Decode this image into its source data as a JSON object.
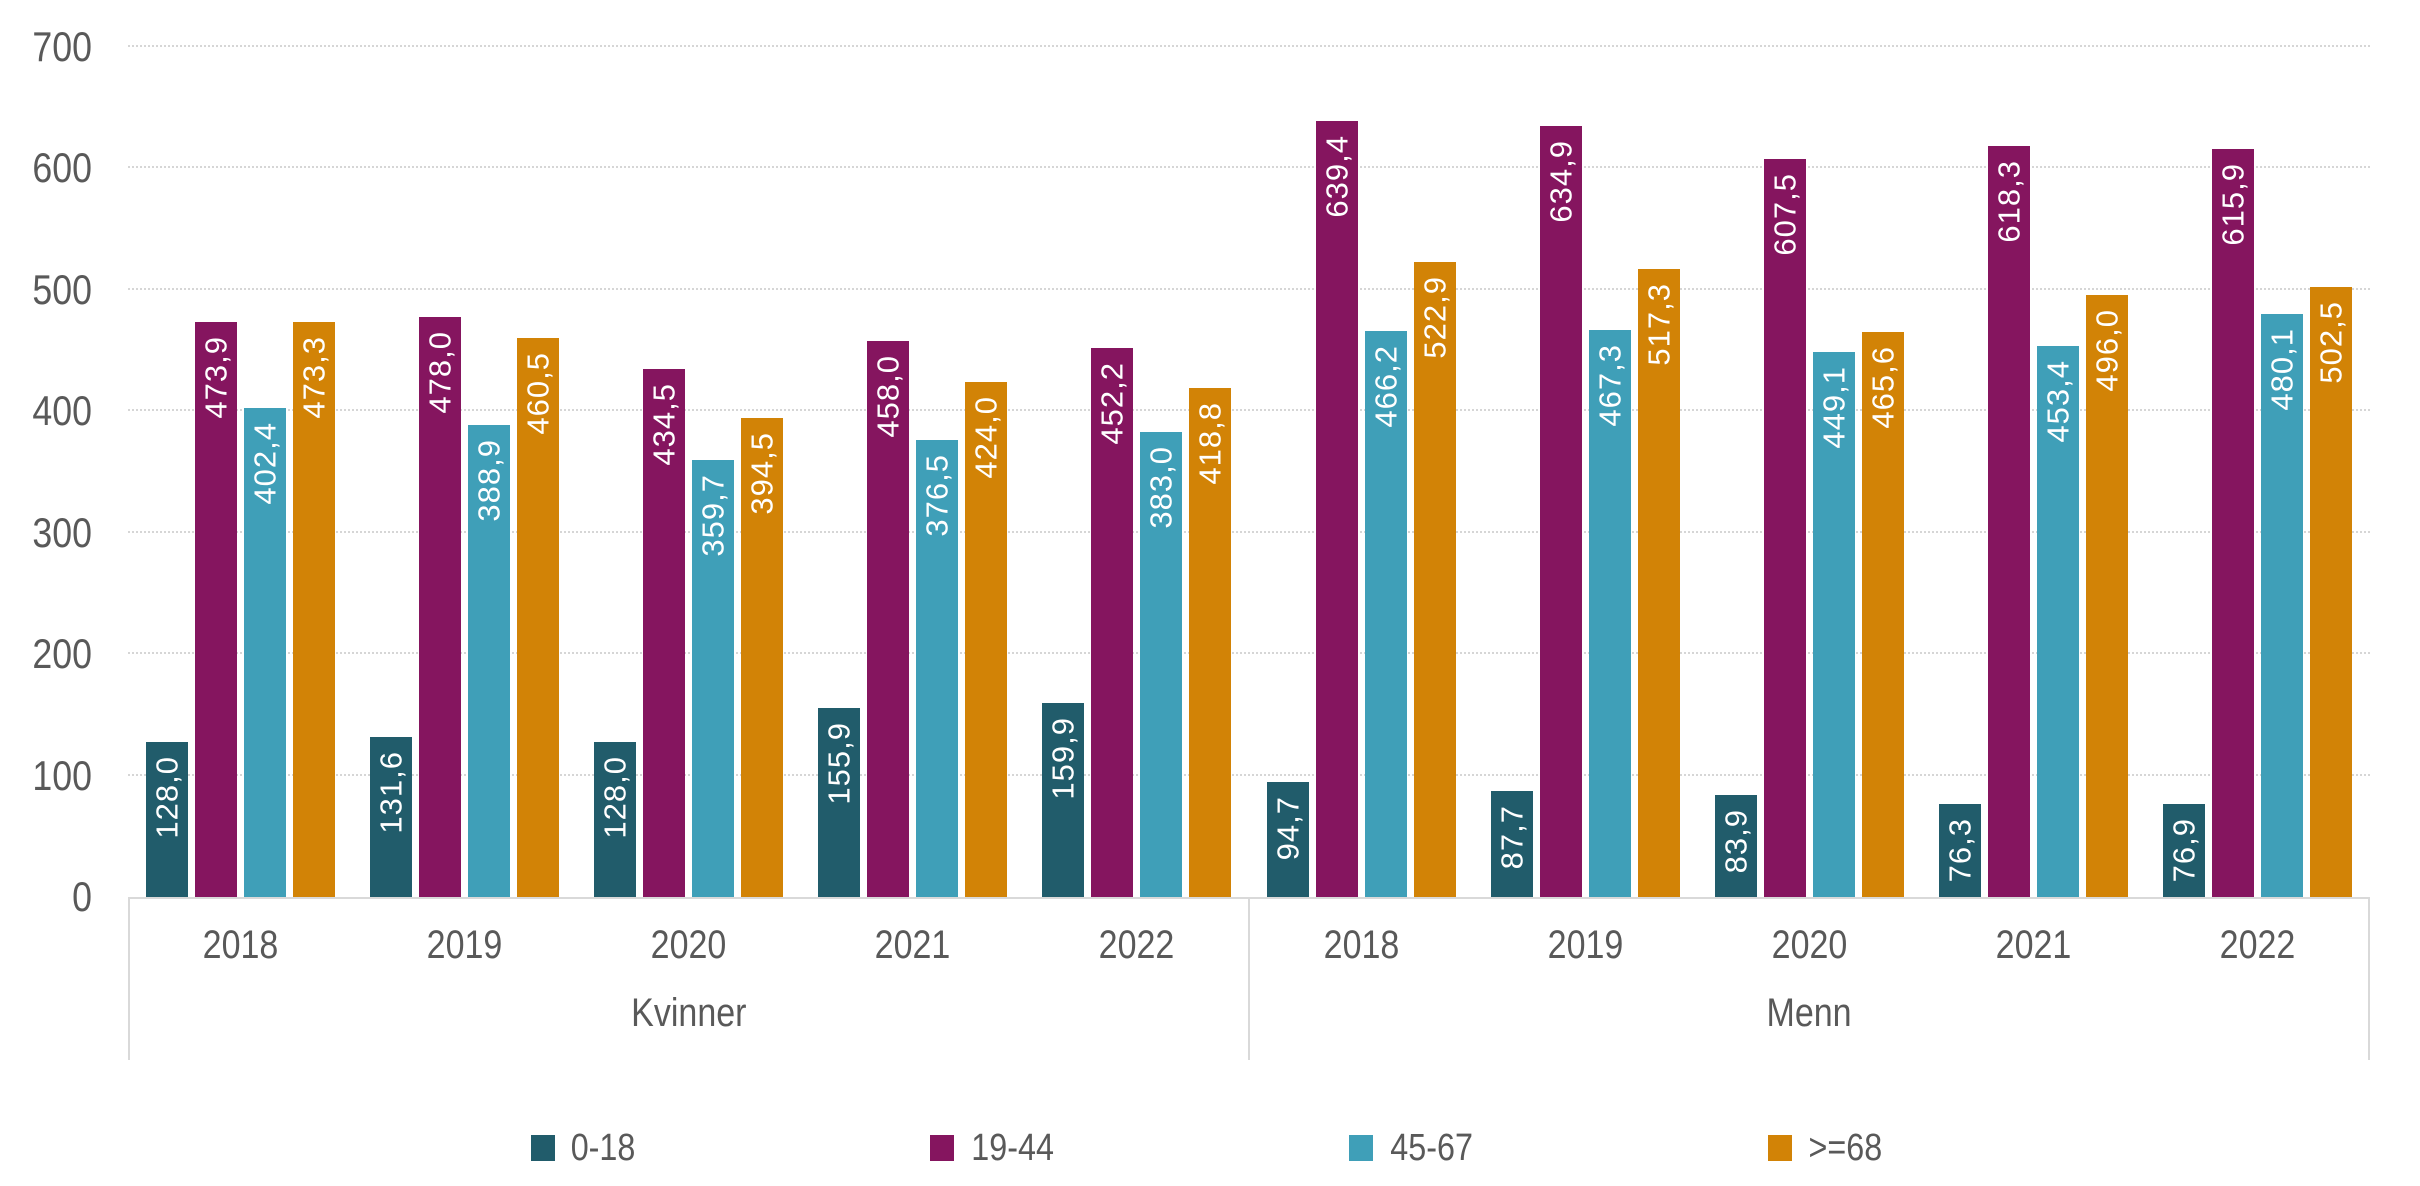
{
  "chart_data": {
    "type": "bar",
    "title": "",
    "xlabel": "",
    "ylabel": "",
    "ylim": [
      0,
      700
    ],
    "yticks": [
      0,
      100,
      200,
      300,
      400,
      500,
      600,
      700
    ],
    "grid": "horizontal",
    "legend_position": "bottom",
    "decimal_separator": ",",
    "value_labels": "rotated-vertical-white-inside-top",
    "groups": [
      "Kvinner",
      "Menn"
    ],
    "categories": [
      "2018",
      "2019",
      "2020",
      "2021",
      "2022"
    ],
    "series": [
      {
        "name": "0-18",
        "color": "#215c6b",
        "values": {
          "Kvinner": [
            128.0,
            131.6,
            128.0,
            155.9,
            159.9
          ],
          "Menn": [
            94.7,
            87.7,
            83.9,
            76.3,
            76.9
          ]
        }
      },
      {
        "name": "19-44",
        "color": "#85155f",
        "values": {
          "Kvinner": [
            473.9,
            478.0,
            434.5,
            458.0,
            452.2
          ],
          "Menn": [
            639.4,
            634.9,
            607.5,
            618.3,
            615.9
          ]
        }
      },
      {
        "name": "45-67",
        "color": "#3f9fb8",
        "values": {
          "Kvinner": [
            402.4,
            388.9,
            359.7,
            376.5,
            383.0
          ],
          "Menn": [
            466.2,
            467.3,
            449.1,
            453.4,
            480.1
          ]
        }
      },
      {
        "name": ">=68",
        "color": "#d28306",
        "values": {
          "Kvinner": [
            473.3,
            460.5,
            394.5,
            424.0,
            418.8
          ],
          "Menn": [
            522.9,
            517.3,
            465.6,
            496.0,
            502.5
          ]
        }
      }
    ],
    "styles": {
      "axis_text_color": "#595959",
      "gridline_color": "#d6d6d6",
      "axis_line_color": "#d9d9d9",
      "bar_label_color": "#ffffff"
    }
  }
}
